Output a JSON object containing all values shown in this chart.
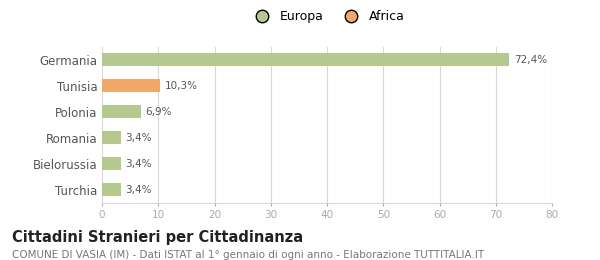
{
  "categories": [
    "Germania",
    "Tunisia",
    "Polonia",
    "Romania",
    "Bielorussia",
    "Turchia"
  ],
  "values": [
    72.4,
    10.3,
    6.9,
    3.4,
    3.4,
    3.4
  ],
  "labels": [
    "72,4%",
    "10,3%",
    "6,9%",
    "3,4%",
    "3,4%",
    "3,4%"
  ],
  "colors": [
    "#b5c98e",
    "#f0a868",
    "#b5c98e",
    "#b5c98e",
    "#b5c98e",
    "#b5c98e"
  ],
  "legend": [
    {
      "label": "Europa",
      "color": "#b5c98e"
    },
    {
      "label": "Africa",
      "color": "#f0a868"
    }
  ],
  "xlim": [
    0,
    80
  ],
  "xticks": [
    0,
    10,
    20,
    30,
    40,
    50,
    60,
    70,
    80
  ],
  "title": "Cittadini Stranieri per Cittadinanza",
  "subtitle": "COMUNE DI VASIA (IM) - Dati ISTAT al 1° gennaio di ogni anno - Elaborazione TUTTITALIA.IT",
  "background_color": "#ffffff",
  "grid_color": "#d8d8d8",
  "bar_height": 0.5,
  "label_fontsize": 7.5,
  "ytick_fontsize": 8.5,
  "xtick_fontsize": 7.5,
  "title_fontsize": 10.5,
  "subtitle_fontsize": 7.5,
  "legend_fontsize": 9
}
